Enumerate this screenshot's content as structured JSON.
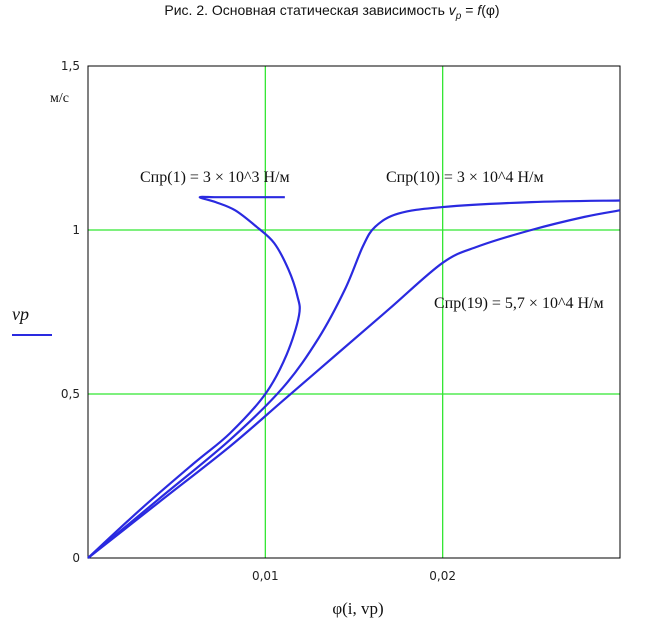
{
  "figure": {
    "caption_prefix": "Рис. 2. Основная статическая зависимость",
    "caption_var": "v",
    "caption_var_sub": "p",
    "caption_eq": "=",
    "caption_func": "f",
    "caption_arg": "(φ)"
  },
  "chart_data": {
    "type": "line",
    "title": "",
    "xlabel": "φ(i, vp)",
    "ylabel": "vp",
    "yunit": "м/с",
    "xlim": [
      0,
      0.03
    ],
    "ylim": [
      0,
      1.5
    ],
    "xticks": [
      0.01,
      0.02
    ],
    "xtick_labels": [
      "0,01",
      "0,02"
    ],
    "yticks": [
      0,
      0.5,
      1,
      1.5
    ],
    "ytick_labels": [
      "0",
      "0,5",
      "1",
      "1,5"
    ],
    "grid": true,
    "colors": {
      "line": "#2a2ae0",
      "grid": "#32e632",
      "axis": "#000000"
    },
    "legend_line": "vp",
    "series": [
      {
        "name": "Cпр(1) = 3 × 10^3 Н/м",
        "points": [
          [
            0,
            0
          ],
          [
            0.003,
            0.15
          ],
          [
            0.006,
            0.29
          ],
          [
            0.008,
            0.38
          ],
          [
            0.01,
            0.5
          ],
          [
            0.0112,
            0.62
          ],
          [
            0.0119,
            0.74
          ],
          [
            0.0118,
            0.8
          ],
          [
            0.0113,
            0.88
          ],
          [
            0.0105,
            0.96
          ],
          [
            0.0095,
            1.01
          ],
          [
            0.0083,
            1.06
          ],
          [
            0.0072,
            1.085
          ],
          [
            0.0063,
            1.1
          ],
          [
            0.0072,
            1.1
          ],
          [
            0.0085,
            1.1
          ],
          [
            0.0111,
            1.1
          ]
        ]
      },
      {
        "name": "Cпр(10) = 3 × 10^4 Н/м",
        "points": [
          [
            0,
            0
          ],
          [
            0.004,
            0.18
          ],
          [
            0.008,
            0.36
          ],
          [
            0.011,
            0.52
          ],
          [
            0.013,
            0.67
          ],
          [
            0.0145,
            0.82
          ],
          [
            0.0155,
            0.95
          ],
          [
            0.0162,
            1.01
          ],
          [
            0.0175,
            1.05
          ],
          [
            0.02,
            1.07
          ],
          [
            0.025,
            1.085
          ],
          [
            0.03,
            1.09
          ]
        ]
      },
      {
        "name": "Cпр(19) = 5,7 × 10^4 Н/м",
        "points": [
          [
            0,
            0
          ],
          [
            0.004,
            0.17
          ],
          [
            0.008,
            0.34
          ],
          [
            0.011,
            0.48
          ],
          [
            0.014,
            0.62
          ],
          [
            0.017,
            0.76
          ],
          [
            0.02,
            0.9
          ],
          [
            0.022,
            0.95
          ],
          [
            0.025,
            1.0
          ],
          [
            0.028,
            1.04
          ],
          [
            0.03,
            1.06
          ]
        ]
      }
    ]
  }
}
